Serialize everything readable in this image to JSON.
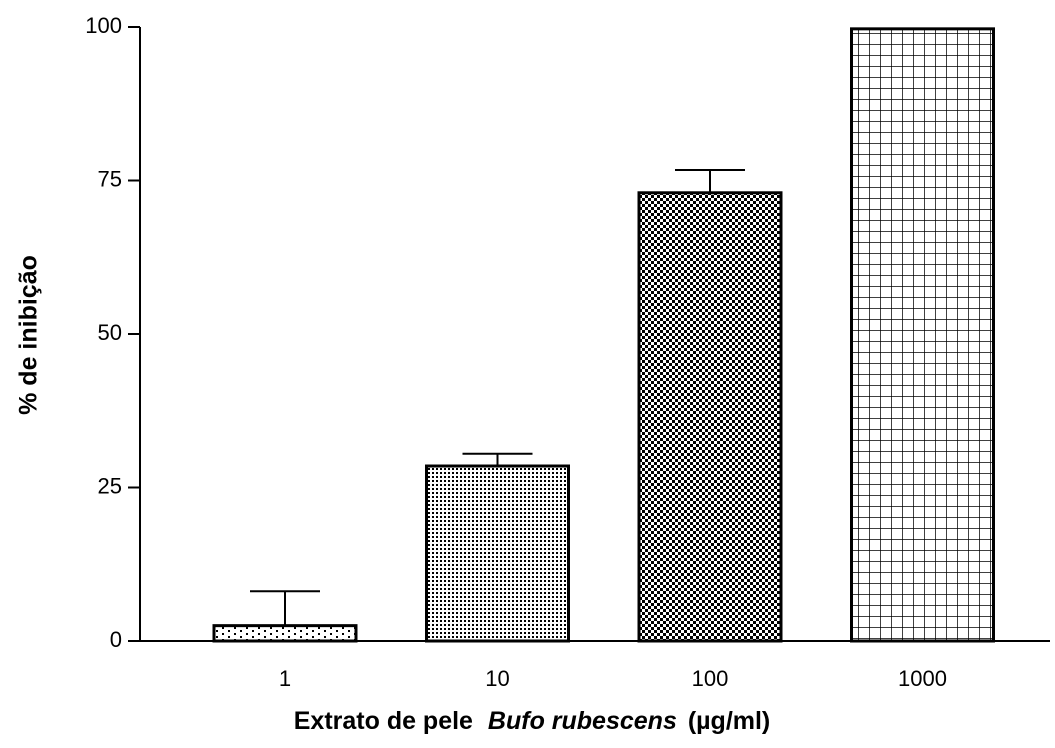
{
  "chart_data": {
    "type": "bar",
    "y_label": "% de inibição",
    "x_label_parts": [
      "Extrato de pele",
      "Bufo rubescens",
      "(µg/ml)"
    ],
    "categories": [
      "1",
      "10",
      "100",
      "1000"
    ],
    "values": [
      2.5,
      28.5,
      73,
      99.7
    ],
    "errors": [
      5.6,
      2,
      3.7,
      0
    ],
    "color": "#000000",
    "ylim": [
      0,
      100
    ],
    "yticks": [
      0,
      25,
      50,
      75,
      100
    ]
  }
}
